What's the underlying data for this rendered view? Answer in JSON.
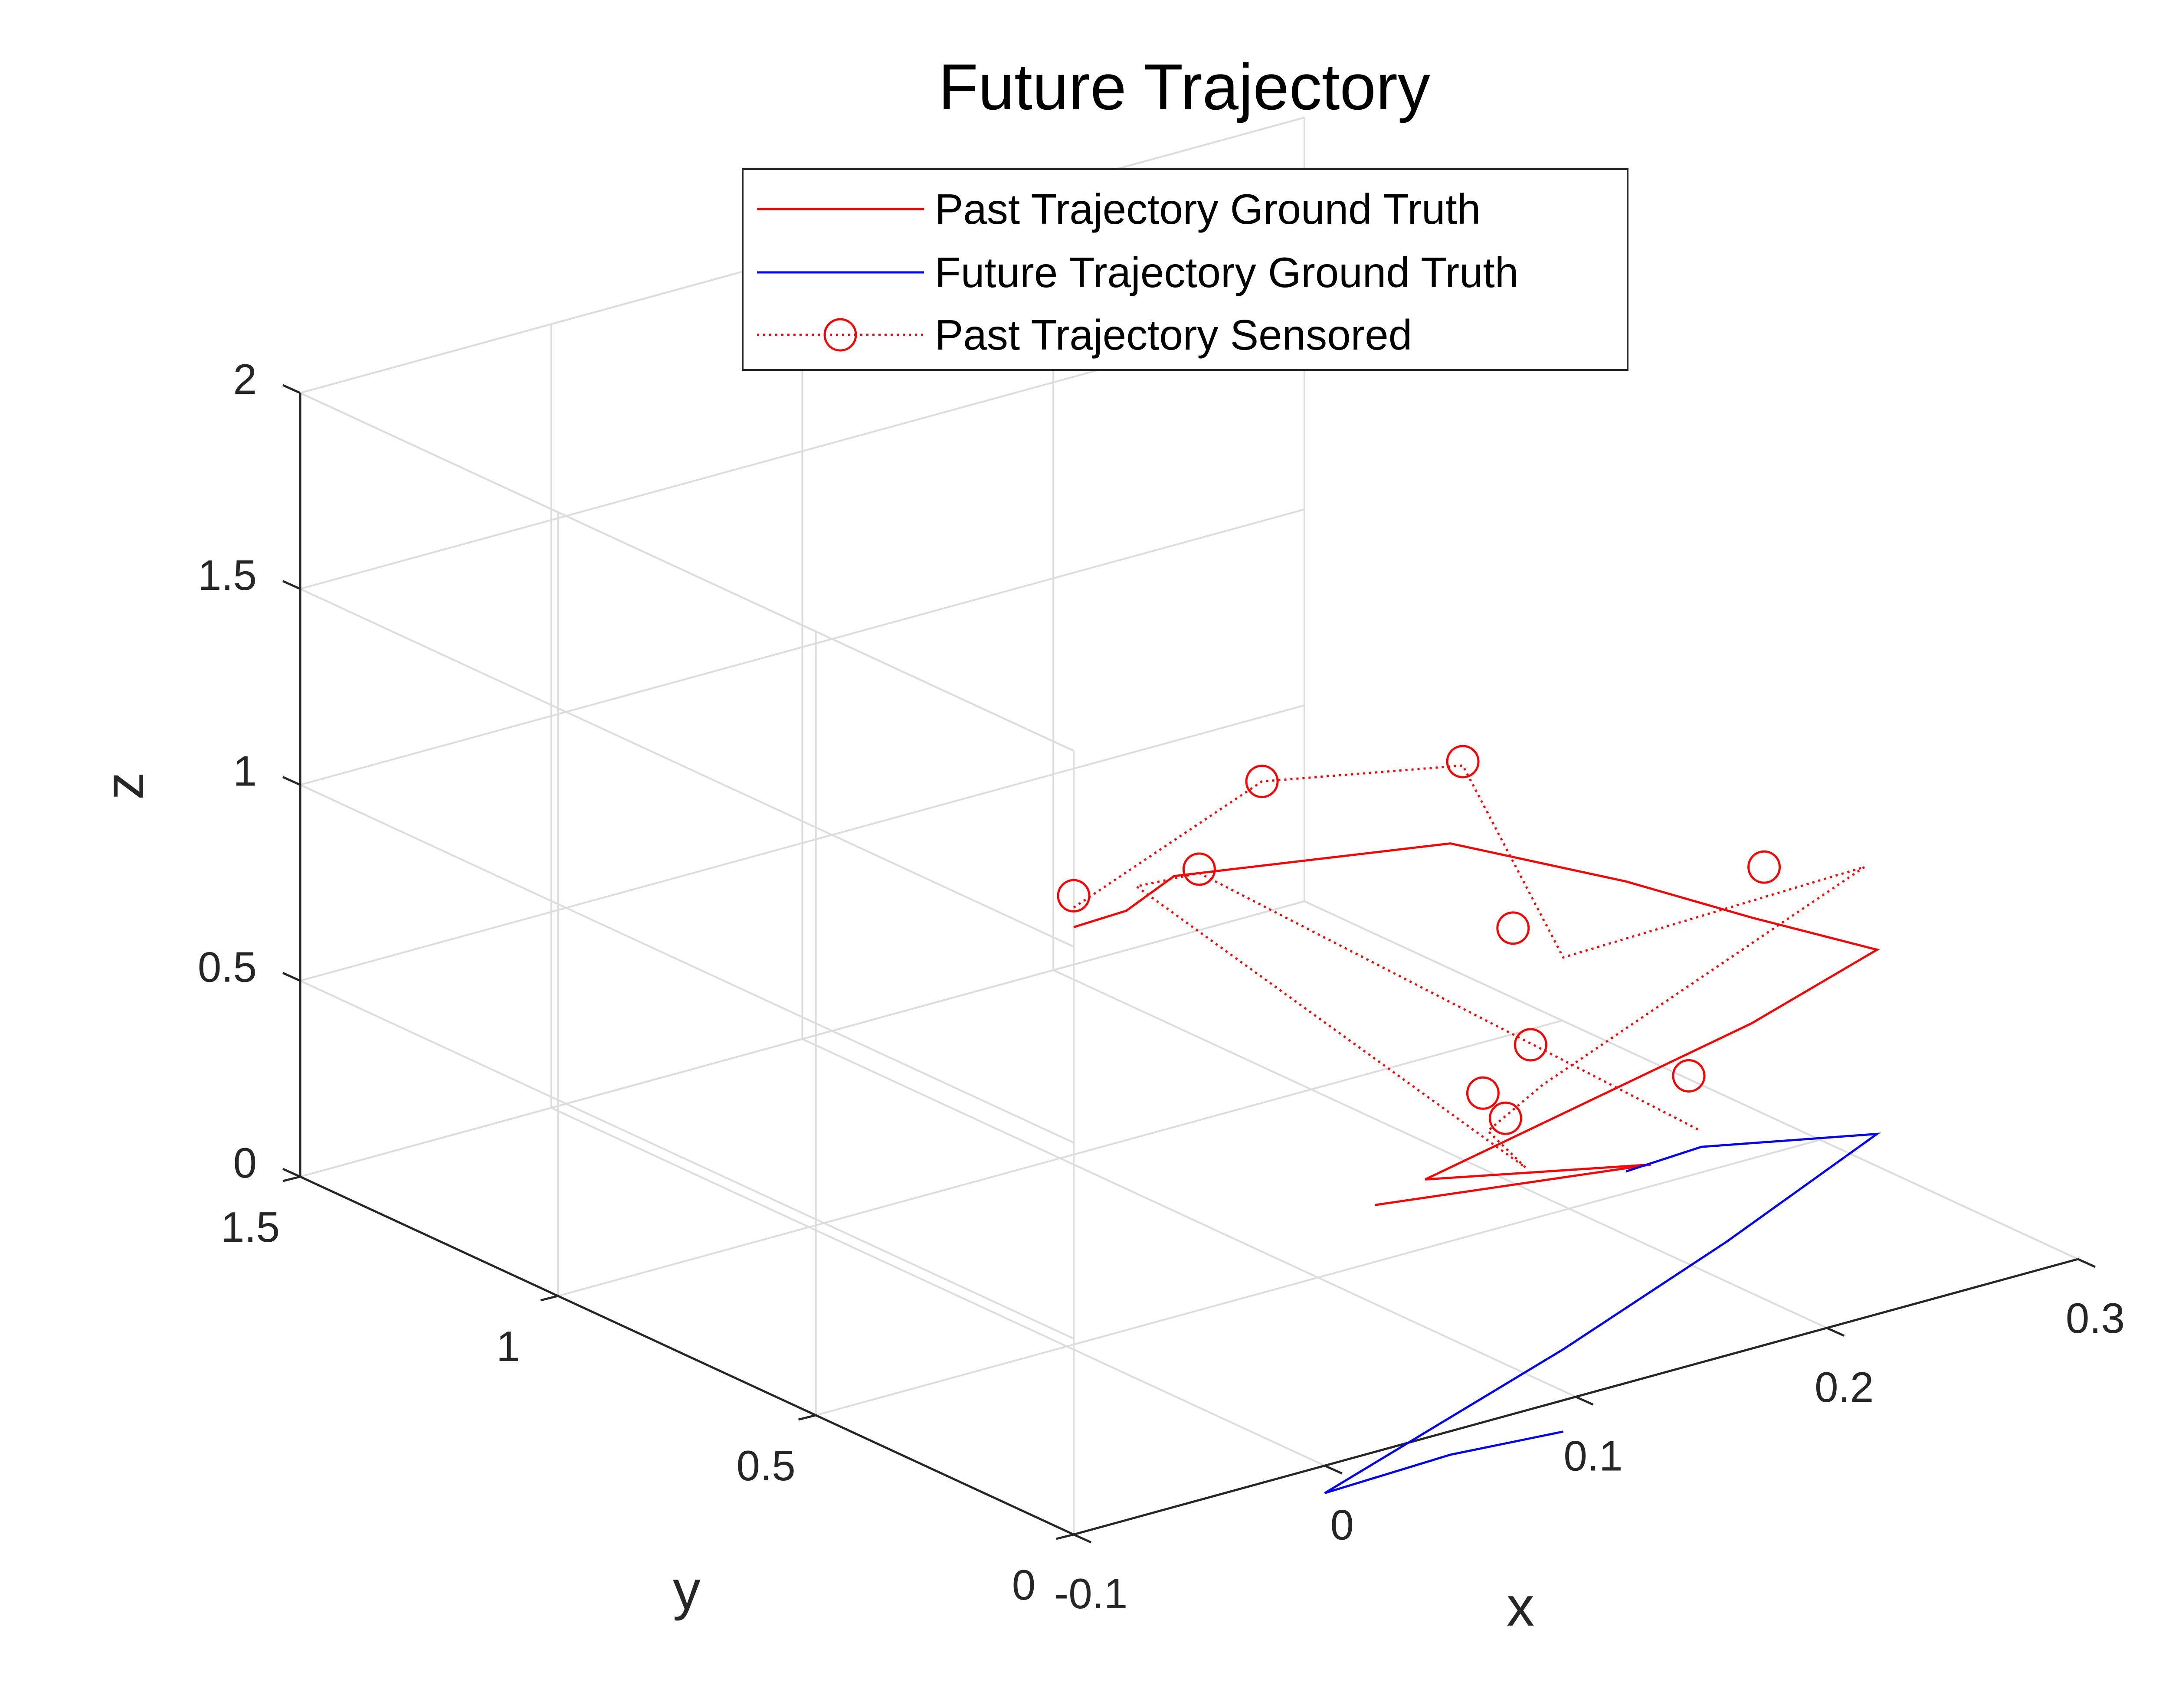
{
  "chart_data": {
    "type": "line3d",
    "title": "Future Trajectory",
    "xlabel": "x",
    "ylabel": "y",
    "zlabel": "z",
    "xlim": [
      -0.1,
      0.3
    ],
    "ylim": [
      0,
      1.5
    ],
    "zlim": [
      0,
      2
    ],
    "xticks": [
      "-0.1",
      "0",
      "0.1",
      "0.2",
      "0.3"
    ],
    "yticks": [
      "0",
      "0.5",
      "1",
      "1.5"
    ],
    "zticks": [
      "0",
      "0.5",
      "1",
      "1.5",
      "2"
    ],
    "grid": true,
    "box": true,
    "legend_position": "top-center",
    "series": [
      {
        "name": "Past Trajectory Ground Truth",
        "color": "#ff0000",
        "line_style": "solid",
        "marker": "none",
        "points_projected": [
          [
            -0.1,
            0,
            1.55
          ],
          [
            -0.079,
            0,
            1.555
          ],
          [
            -0.06,
            0,
            1.61
          ],
          [
            -0.03,
            0,
            1.58
          ],
          [
            0.05,
            0,
            1.5
          ],
          [
            0.12,
            0,
            1.28
          ],
          [
            0.17,
            0,
            1.1
          ],
          [
            0.22,
            0,
            0.93
          ],
          [
            0.17,
            0,
            0.83
          ],
          [
            0.04,
            0,
            0.66
          ],
          [
            0.13,
            0,
            0.54
          ],
          [
            0.02,
            0,
            0.63
          ]
        ]
      },
      {
        "name": "Future Trajectory Ground Truth",
        "color": "#0000ff",
        "line_style": "solid",
        "marker": "none",
        "points_projected": [
          [
            0.12,
            0,
            0.54
          ],
          [
            0.15,
            0,
            0.55
          ],
          [
            0.22,
            0,
            0.46
          ],
          [
            0.16,
            0,
            0.29
          ],
          [
            0.095,
            0,
            0.13
          ],
          [
            0.0,
            0,
            -0.07
          ],
          [
            0.05,
            0,
            -0.06
          ],
          [
            0.095,
            0,
            -0.08
          ]
        ]
      },
      {
        "name": "Past Trajectory Sensored",
        "color": "#ff0000",
        "line_style": "dotted",
        "marker": "circle",
        "points_projected": [
          [
            -0.1,
            0,
            1.6
          ],
          [
            -0.025,
            0,
            1.79
          ],
          [
            0.055,
            0,
            1.69
          ],
          [
            0.095,
            0,
            1.13
          ],
          [
            0.215,
            0,
            1.15
          ],
          [
            0.087,
            0,
            0.82
          ],
          [
            0.065,
            0,
            0.74
          ],
          [
            0.08,
            0,
            0.62
          ],
          [
            -0.075,
            0,
            1.61
          ],
          [
            -0.05,
            0,
            1.6
          ],
          [
            0.15,
            0,
            0.59
          ]
        ],
        "marker_points": [
          [
            -0.1,
            0,
            1.63
          ],
          [
            -0.05,
            0,
            1.61
          ],
          [
            -0.025,
            0,
            1.79
          ],
          [
            0.055,
            0,
            1.7
          ],
          [
            0.075,
            0,
            1.24
          ],
          [
            0.175,
            0,
            1.22
          ],
          [
            0.082,
            0,
            0.93
          ],
          [
            0.063,
            0,
            0.84
          ],
          [
            0.072,
            0,
            0.76
          ],
          [
            0.145,
            0,
            0.74
          ]
        ]
      }
    ]
  }
}
